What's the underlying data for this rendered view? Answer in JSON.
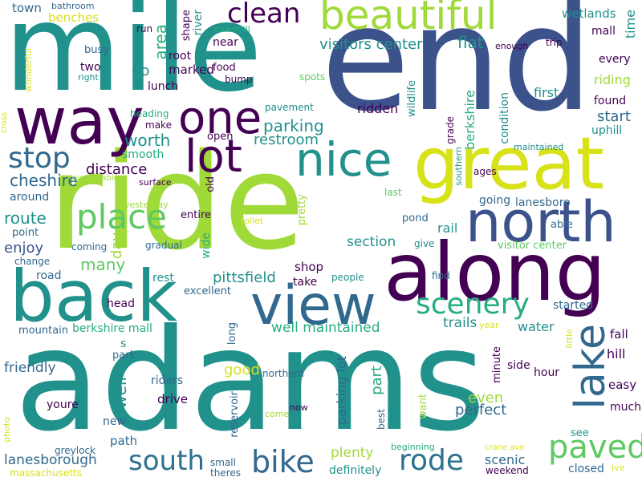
{
  "palette": {
    "dark_purple": "#440154",
    "blue": "#3b528b",
    "teal": "#21918c",
    "green": "#27ad81",
    "light_green": "#5ec962",
    "lime": "#a0da39",
    "yellow": "#d8e219",
    "slate": "#31688e",
    "deep_teal": "#2c728e"
  },
  "words": {
    "adams": "adams",
    "ride": "ride",
    "mile": "mile",
    "end": "end",
    "along": "along",
    "back": "back",
    "great": "great",
    "way": "way",
    "view": "view",
    "north": "north",
    "beautiful": "beautiful",
    "lake": "lake",
    "nice": "nice",
    "lot": "lot",
    "one": "one",
    "paved": "paved",
    "place": "place",
    "stop": "stop",
    "bike": "bike",
    "south": "south",
    "rode": "rode",
    "scenery": "scenery",
    "clean": "clean",
    "parking": "parking",
    "restroom": "restroom",
    "worth": "worth",
    "distance": "distance",
    "cheshire": "cheshire",
    "route": "route",
    "enjoy": "enjoy",
    "many": "many",
    "day": "day",
    "visitors_center": "visitors center",
    "flat": "flat",
    "area": "area",
    "go": "go",
    "marked": "marked",
    "root": "root",
    "shape": "shape",
    "river": "river",
    "wetlands": "wetlands",
    "mall_top": "mall",
    "time": "time",
    "every": "every",
    "riding": "riding",
    "found": "found",
    "start": "start",
    "uphill": "uphill",
    "first": "first",
    "berkshire": "berkshire",
    "ridden": "ridden",
    "wildlife": "wildlife",
    "grade": "grade",
    "southern": "southern",
    "condition": "condition",
    "maintained": "maintained",
    "ages": "ages",
    "lanesboro": "lanesboro",
    "going": "going",
    "last": "last",
    "pond": "pond",
    "able": "able",
    "rail": "rail",
    "section": "section",
    "give": "give",
    "visitor_center": "visitor center",
    "find": "find",
    "people": "people",
    "take": "take",
    "shop": "shop",
    "pittsfield": "pittsfield",
    "rest": "rest",
    "excellent": "excellent",
    "well_maintained": "well maintained",
    "trails": "trails",
    "started": "started",
    "water": "water",
    "fall": "fall",
    "hill": "hill",
    "easy": "easy",
    "much": "much",
    "hour": "hour",
    "side": "side",
    "minute": "minute",
    "little": "little",
    "year": "year",
    "berkshire_mall": "berkshire mall",
    "s": "s",
    "well": "well",
    "friendly": "friendly",
    "park": "park",
    "riders": "riders",
    "drive": "drive",
    "youre": "youre",
    "new": "new",
    "path": "path",
    "greylock": "greylock",
    "lanesborough": "lanesborough",
    "massachusetts": "massachusetts",
    "small": "small",
    "theres": "theres",
    "reservoir": "reservoir",
    "come": "come",
    "now": "now",
    "northern": "northern",
    "long": "long",
    "good": "good",
    "parking_lot": "parking lot",
    "best": "best",
    "part": "part",
    "even": "even",
    "perfect": "perfect",
    "want": "want",
    "plenty": "plenty",
    "definitely": "definitely",
    "beginning": "beginning",
    "scenic": "scenic",
    "crane_ave": "crane ave",
    "weekend": "weekend",
    "closed": "closed",
    "see": "see",
    "ive": "ive",
    "photo": "photo",
    "head": "head",
    "mountain": "mountain",
    "road": "road",
    "change": "change",
    "point": "point",
    "around": "around",
    "coming": "coming",
    "gradual": "gradual",
    "yesterday": "yesterday",
    "entire": "entire",
    "wide": "wide",
    "old": "old",
    "surface": "surface",
    "picnic_tables": "picnic tables",
    "pretty": "pretty",
    "toilet": "toilet",
    "open": "open",
    "smooth": "smooth",
    "make": "make",
    "heading": "heading",
    "lunch": "lunch",
    "bump": "bump",
    "food": "food",
    "near": "near",
    "downhill": "downhill",
    "spots": "spots",
    "pavement": "pavement",
    "cross": "cross",
    "wonderful": "wonderful",
    "right": "right",
    "two": "two",
    "busy": "busy",
    "run": "run",
    "town": "town",
    "bathroom": "bathroom",
    "benches": "benches",
    "enough": "enough",
    "trip": "trip",
    "mall_mid": "mall"
  }
}
